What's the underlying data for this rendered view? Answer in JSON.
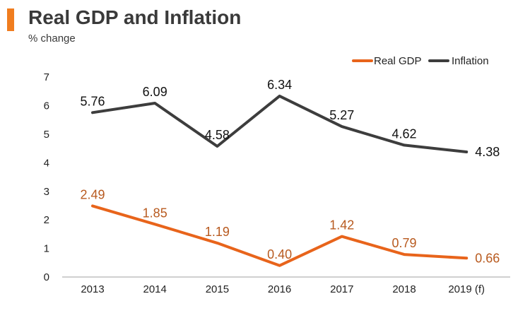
{
  "title": "Real GDP and Inflation",
  "subtitle": "% change",
  "colors": {
    "accent": "#f07d1f",
    "gdp": "#e8641b",
    "gdp_label": "#b85a1f",
    "inflation": "#3d3d3d",
    "axis": "#a0a0a0"
  },
  "chart_data": {
    "type": "line",
    "title": "Real GDP and Inflation",
    "subtitle": "% change",
    "categories": [
      "2013",
      "2014",
      "2015",
      "2016",
      "2017",
      "2018",
      "2019 (f)"
    ],
    "ylim": [
      0,
      7
    ],
    "yticks": [
      0,
      1,
      2,
      3,
      4,
      5,
      6,
      7
    ],
    "legend_position": "top-right",
    "series": [
      {
        "name": "Real GDP",
        "color": "#e8641b",
        "label_color": "#b85a1f",
        "values": [
          2.49,
          1.85,
          1.19,
          0.4,
          1.42,
          0.79,
          0.66
        ],
        "labels": [
          "2.49",
          "1.85",
          "1.19",
          "0.40",
          "1.42",
          "0.79",
          "0.66"
        ]
      },
      {
        "name": "Inflation",
        "color": "#3d3d3d",
        "label_color": "#111111",
        "values": [
          5.76,
          6.09,
          4.58,
          6.34,
          5.27,
          4.62,
          4.38
        ],
        "labels": [
          "5.76",
          "6.09",
          "4.58",
          "6.34",
          "5.27",
          "4.62",
          "4.38"
        ]
      }
    ]
  }
}
